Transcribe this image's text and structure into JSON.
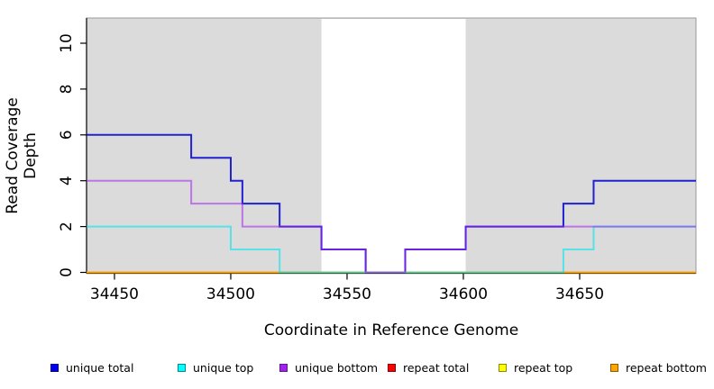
{
  "chart_data": {
    "type": "line",
    "subtype": "step-coverage",
    "title": "",
    "xlabel": "Coordinate in Reference Genome",
    "ylabel": "Read Coverage Depth",
    "x_range": [
      34438,
      34700
    ],
    "y_range": [
      0,
      11.12
    ],
    "x_ticks": [
      34450,
      34500,
      34550,
      34600,
      34650
    ],
    "y_ticks": [
      0,
      2,
      4,
      6,
      8,
      10
    ],
    "grid": false,
    "panel_color": "#DBDBDB",
    "panel_border_color": "#999999",
    "shaded_repeat_regions": [
      [
        34438,
        34539
      ],
      [
        34601,
        34700
      ]
    ],
    "white_gap_region": [
      34539,
      34601
    ],
    "series": [
      {
        "name": "unique total",
        "color": "#0000CD",
        "opacity": 0.85,
        "steps": [
          [
            34438,
            6
          ],
          [
            34483,
            5
          ],
          [
            34500,
            4
          ],
          [
            34505,
            3
          ],
          [
            34521,
            2
          ],
          [
            34539,
            1
          ],
          [
            34558,
            0
          ],
          [
            34575,
            1
          ],
          [
            34601,
            2
          ],
          [
            34643,
            3
          ],
          [
            34656,
            4
          ]
        ],
        "end_x": 34700
      },
      {
        "name": "repeat total",
        "color": "#DD0000",
        "opacity": 1,
        "steps": [
          [
            34438,
            0
          ]
        ],
        "end_x": 34700
      },
      {
        "name": "repeat top",
        "color": "#FFFF00",
        "opacity": 1,
        "steps": [
          [
            34438,
            0
          ]
        ],
        "end_x": 34700
      },
      {
        "name": "repeat bottom",
        "color": "#FFA500",
        "opacity": 1,
        "steps": [
          [
            34438,
            0
          ]
        ],
        "end_x": 34700
      },
      {
        "name": "unique top",
        "color": "#00E5EE",
        "opacity": 0.6,
        "steps": [
          [
            34438,
            2
          ],
          [
            34500,
            1
          ],
          [
            34521,
            0
          ],
          [
            34643,
            1
          ],
          [
            34656,
            2
          ]
        ],
        "end_x": 34700
      },
      {
        "name": "unique bottom",
        "color": "#A020F0",
        "opacity": 0.55,
        "steps": [
          [
            34438,
            4
          ],
          [
            34483,
            3
          ],
          [
            34505,
            2
          ],
          [
            34539,
            1
          ],
          [
            34558,
            0
          ],
          [
            34575,
            1
          ],
          [
            34601,
            2
          ]
        ],
        "end_x": 34700
      }
    ],
    "legend": {
      "position": "bottom",
      "items": [
        {
          "label": "unique total",
          "fill": "#0000EE",
          "border": "#00008B",
          "x": 56
        },
        {
          "label": "unique top",
          "fill": "#00FFFF",
          "border": "#008B8B",
          "x": 197
        },
        {
          "label": "unique bottom",
          "fill": "#A020F0",
          "border": "#5D1A8B",
          "x": 310
        },
        {
          "label": "repeat total",
          "fill": "#FF0000",
          "border": "#8B0000",
          "x": 430
        },
        {
          "label": "repeat top",
          "fill": "#FFFF00",
          "border": "#8B8B00",
          "x": 553
        },
        {
          "label": "repeat bottom",
          "fill": "#FFA500",
          "border": "#8B5A00",
          "x": 677
        }
      ],
      "y": 401
    }
  }
}
